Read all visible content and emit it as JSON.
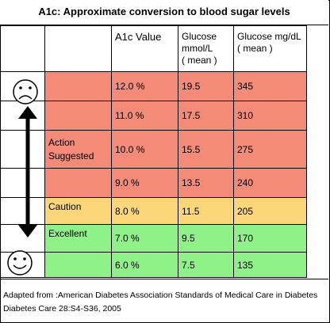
{
  "title": "A1c:  Approximate conversion to blood sugar levels",
  "headers": [
    "",
    "A1c Value",
    "Glucose mmol/L ( mean )",
    "Glucose mg/dL ( mean )"
  ],
  "header_lines": {
    "a1c": "A1c Value",
    "mmol": [
      "Glucose",
      "mmol/L",
      "( mean )"
    ],
    "mgdl": [
      "Glucose mg/dL",
      "( mean )"
    ]
  },
  "rows": [
    {
      "label": "",
      "a1c": "12.0 %",
      "mmol": "19.5",
      "mgdl": "345",
      "color": "#f48a78"
    },
    {
      "label": "",
      "a1c": "11.0 %",
      "mmol": "17.5",
      "mgdl": "310",
      "color": "#f48a78"
    },
    {
      "label": "Action Suggested",
      "label_lines": [
        "Action",
        "Suggested"
      ],
      "a1c": "10.0 %",
      "mmol": "15.5",
      "mgdl": "275",
      "color": "#f48a78"
    },
    {
      "label": "",
      "a1c": "9.0 %",
      "mmol": "13.5",
      "mgdl": "240",
      "color": "#f48a78"
    },
    {
      "label": "Caution",
      "a1c": "8.0 %",
      "mmol": "11.5",
      "mgdl": "205",
      "color": "#fbd77a"
    },
    {
      "label": "Excellent",
      "a1c": "7.0 %",
      "mmol": "9.5",
      "mgdl": "170",
      "color": "#8ef289"
    },
    {
      "label": "",
      "a1c": "6.0 %",
      "mmol": "7.5",
      "mgdl": "135",
      "color": "#8ef289"
    }
  ],
  "icons": [
    "sad-face-icon",
    "double-arrow-icon",
    "happy-face-icon"
  ],
  "footer": {
    "line1": "Adapted from :American Diabetes Association Standards of Medical Care in Diabetes",
    "line2": "Diabetes Care 28:S4-S36, 2005"
  }
}
